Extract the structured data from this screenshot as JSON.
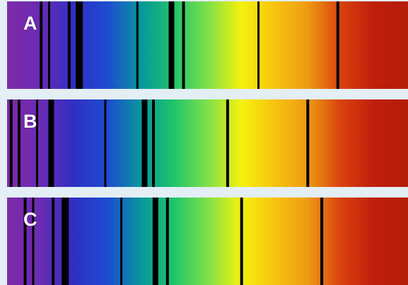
{
  "colors": {
    "background": "#e3eef5",
    "line": "#000000",
    "label": "#ffffff",
    "spectrum_stops": [
      "#7f2aa8",
      "#6a2bb3",
      "#2f2fc4",
      "#1e4bd0",
      "#08969c",
      "#1ec56a",
      "#7fe04a",
      "#f4f10e",
      "#f8c40e",
      "#ee9a14",
      "#d8410e",
      "#bf1e0b",
      "#b51c0a"
    ]
  },
  "spectra": [
    {
      "label": "A",
      "lines": [
        {
          "pos": 0.085,
          "w": 4
        },
        {
          "pos": 0.105,
          "w": 3
        },
        {
          "pos": 0.155,
          "w": 4
        },
        {
          "pos": 0.18,
          "w": 10
        },
        {
          "pos": 0.325,
          "w": 3
        },
        {
          "pos": 0.41,
          "w": 8
        },
        {
          "pos": 0.44,
          "w": 4
        },
        {
          "pos": 0.627,
          "w": 3
        },
        {
          "pos": 0.825,
          "w": 4
        }
      ]
    },
    {
      "label": "B",
      "lines": [
        {
          "pos": 0.01,
          "w": 4
        },
        {
          "pos": 0.03,
          "w": 4
        },
        {
          "pos": 0.075,
          "w": 3
        },
        {
          "pos": 0.11,
          "w": 8
        },
        {
          "pos": 0.245,
          "w": 3
        },
        {
          "pos": 0.343,
          "w": 8
        },
        {
          "pos": 0.365,
          "w": 4
        },
        {
          "pos": 0.55,
          "w": 4
        },
        {
          "pos": 0.75,
          "w": 4
        }
      ]
    },
    {
      "label": "C",
      "lines": [
        {
          "pos": 0.045,
          "w": 4
        },
        {
          "pos": 0.065,
          "w": 3
        },
        {
          "pos": 0.115,
          "w": 4
        },
        {
          "pos": 0.145,
          "w": 10
        },
        {
          "pos": 0.285,
          "w": 3
        },
        {
          "pos": 0.37,
          "w": 8
        },
        {
          "pos": 0.4,
          "w": 4
        },
        {
          "pos": 0.585,
          "w": 4
        },
        {
          "pos": 0.785,
          "w": 4
        }
      ]
    }
  ]
}
